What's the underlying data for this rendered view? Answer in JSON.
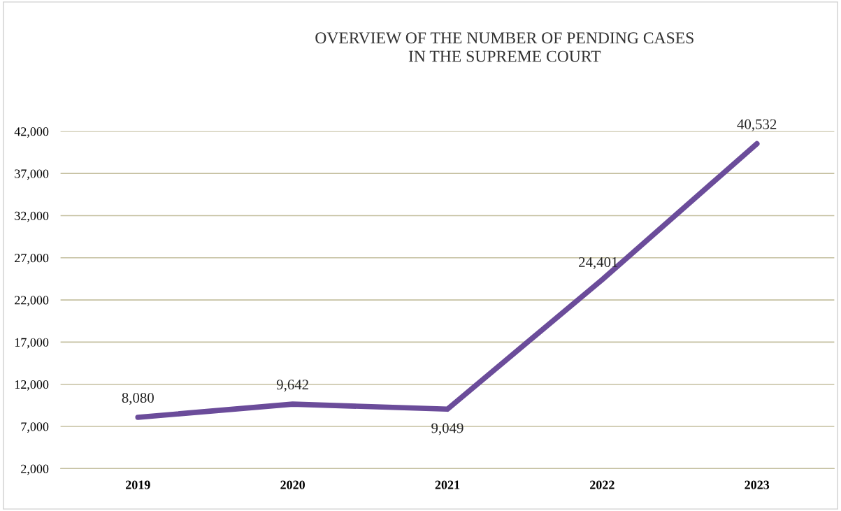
{
  "chart_data": {
    "type": "line",
    "title": "OVERVIEW OF THE NUMBER OF PENDING CASES\nIN THE SUPREME COURT",
    "categories": [
      "2019",
      "2020",
      "2021",
      "2022",
      "2023"
    ],
    "series": [
      {
        "color": "#6b4c9a",
        "values": [
          8080,
          9642,
          9049,
          24401,
          40532
        ],
        "value_labels": [
          "8,080",
          "9,642",
          "9,049",
          "24,401",
          "40,532"
        ]
      }
    ],
    "ylim": [
      2000,
      42000
    ],
    "yticks": [
      {
        "value": 2000,
        "label": "2,000"
      },
      {
        "value": 7000,
        "label": "7,000"
      },
      {
        "value": 12000,
        "label": "12,000"
      },
      {
        "value": 17000,
        "label": "17,000"
      },
      {
        "value": 22000,
        "label": "22,000"
      },
      {
        "value": 27000,
        "label": "27,000"
      },
      {
        "value": 32000,
        "label": "32,000"
      },
      {
        "value": 37000,
        "label": "37,000"
      },
      {
        "value": 42000,
        "label": "42,000"
      }
    ],
    "grid": "y",
    "marker": "none",
    "line_style": "solid",
    "legend": false
  }
}
